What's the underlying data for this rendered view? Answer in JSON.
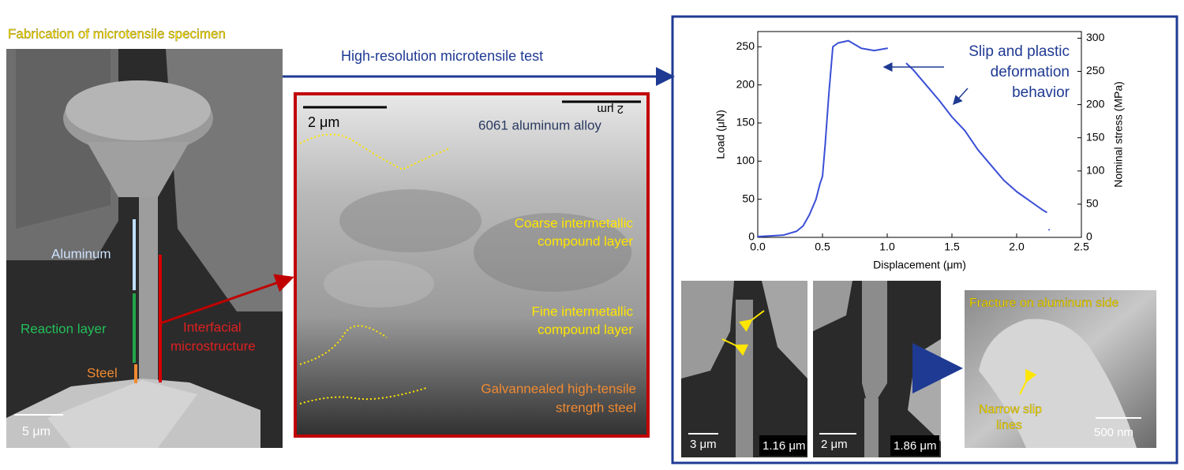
{
  "title": "Fabrication of microtensile specimen",
  "test_label": "High-resolution microtensile test",
  "specimen": {
    "aluminum": "Aluminum",
    "reaction": "Reaction layer",
    "steel": "Steel",
    "interfacial": [
      "Interfacial",
      "microstructure"
    ],
    "scale": "5 μm"
  },
  "microstructure": {
    "scale": "2 μm",
    "scale_mirrored": "2 μm",
    "alloy": "6061 aluminum alloy",
    "coarse": [
      "Coarse intermetallic",
      "compound layer"
    ],
    "fine": [
      "Fine intermetallic",
      "compound layer"
    ],
    "steel": [
      "Galvannealed high-tensile",
      "strength steel"
    ]
  },
  "chart_data": {
    "type": "line",
    "xlabel": "Displacement (μm)",
    "ylabel": "Load (μN)",
    "y2label": "Nominal stress (MPa)",
    "annotation": [
      "Slip and plastic",
      "deformation",
      "behavior"
    ],
    "x": [
      0,
      0.1,
      0.2,
      0.3,
      0.35,
      0.4,
      0.45,
      0.48,
      0.5,
      0.52,
      0.55,
      0.58,
      0.62,
      0.7,
      0.8,
      0.9,
      1.0,
      1.08,
      1.15,
      1.2,
      1.3,
      1.4,
      1.5,
      1.6,
      1.7,
      1.8,
      1.9,
      2.0,
      2.1,
      2.2,
      2.23,
      2.24,
      2.25
    ],
    "series": [
      {
        "color": "#3b4fd6",
        "values": [
          1,
          2,
          3,
          8,
          15,
          30,
          50,
          70,
          80,
          120,
          190,
          250,
          255,
          258,
          248,
          245,
          248,
          null,
          228,
          220,
          200,
          180,
          158,
          140,
          115,
          95,
          75,
          60,
          48,
          36,
          33,
          null,
          10
        ]
      }
    ],
    "xlim": [
      0,
      2.5
    ],
    "xticks": [
      {
        "value": 0,
        "label": "0.0"
      },
      {
        "value": 0.5,
        "label": "0.5"
      },
      {
        "value": 1,
        "label": "1.0"
      },
      {
        "value": 1.5,
        "label": "1.5"
      },
      {
        "value": 2,
        "label": "2.0"
      },
      {
        "value": 2.5,
        "label": "2.5"
      }
    ],
    "ylim": [
      0,
      270
    ],
    "yticks": [
      0,
      50,
      100,
      150,
      200,
      250
    ],
    "y2lim": [
      0,
      310
    ],
    "y2ticks": [
      0,
      50,
      100,
      150,
      200,
      250,
      300
    ]
  },
  "frames": [
    {
      "scale": "3 μm",
      "displacement": "1.16 μm"
    },
    {
      "scale": "2 μm",
      "displacement": "1.86 μm"
    }
  ],
  "fracture": {
    "title": "Fracture on aluminum side",
    "annotation": [
      "Narrow slip",
      "lines"
    ],
    "scale": "500 nm"
  }
}
